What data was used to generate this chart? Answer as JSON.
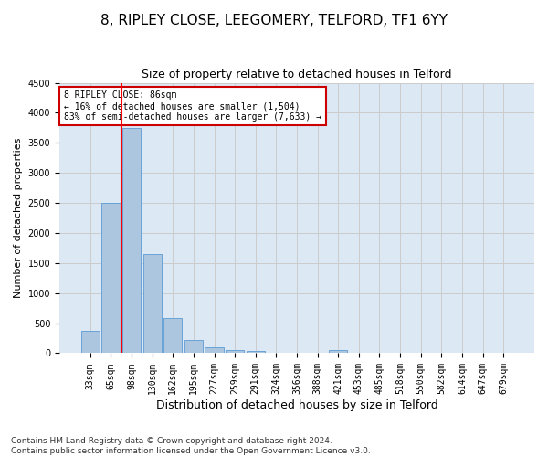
{
  "title": "8, RIPLEY CLOSE, LEEGOMERY, TELFORD, TF1 6YY",
  "subtitle": "Size of property relative to detached houses in Telford",
  "xlabel": "Distribution of detached houses by size in Telford",
  "ylabel": "Number of detached properties",
  "categories": [
    "33sqm",
    "65sqm",
    "98sqm",
    "130sqm",
    "162sqm",
    "195sqm",
    "227sqm",
    "259sqm",
    "291sqm",
    "324sqm",
    "356sqm",
    "388sqm",
    "421sqm",
    "453sqm",
    "485sqm",
    "518sqm",
    "550sqm",
    "582sqm",
    "614sqm",
    "647sqm",
    "679sqm"
  ],
  "values": [
    370,
    2500,
    3750,
    1650,
    590,
    225,
    105,
    60,
    35,
    0,
    0,
    0,
    55,
    0,
    0,
    0,
    0,
    0,
    0,
    0,
    0
  ],
  "bar_color": "#adc6e0",
  "bar_edge_color": "#5b9bd5",
  "annotation_text": "8 RIPLEY CLOSE: 86sqm\n← 16% of detached houses are smaller (1,504)\n83% of semi-detached houses are larger (7,633) →",
  "annotation_box_color": "#ffffff",
  "annotation_box_edge_color": "#cc0000",
  "red_line_x": 1.5,
  "ylim": [
    0,
    4500
  ],
  "yticks": [
    0,
    500,
    1000,
    1500,
    2000,
    2500,
    3000,
    3500,
    4000,
    4500
  ],
  "grid_color": "#cccccc",
  "bg_color": "#dce9f5",
  "footer": "Contains HM Land Registry data © Crown copyright and database right 2024.\nContains public sector information licensed under the Open Government Licence v3.0.",
  "title_fontsize": 11,
  "subtitle_fontsize": 9,
  "xlabel_fontsize": 9,
  "ylabel_fontsize": 8,
  "tick_fontsize": 7,
  "annotation_fontsize": 7,
  "footer_fontsize": 6.5
}
